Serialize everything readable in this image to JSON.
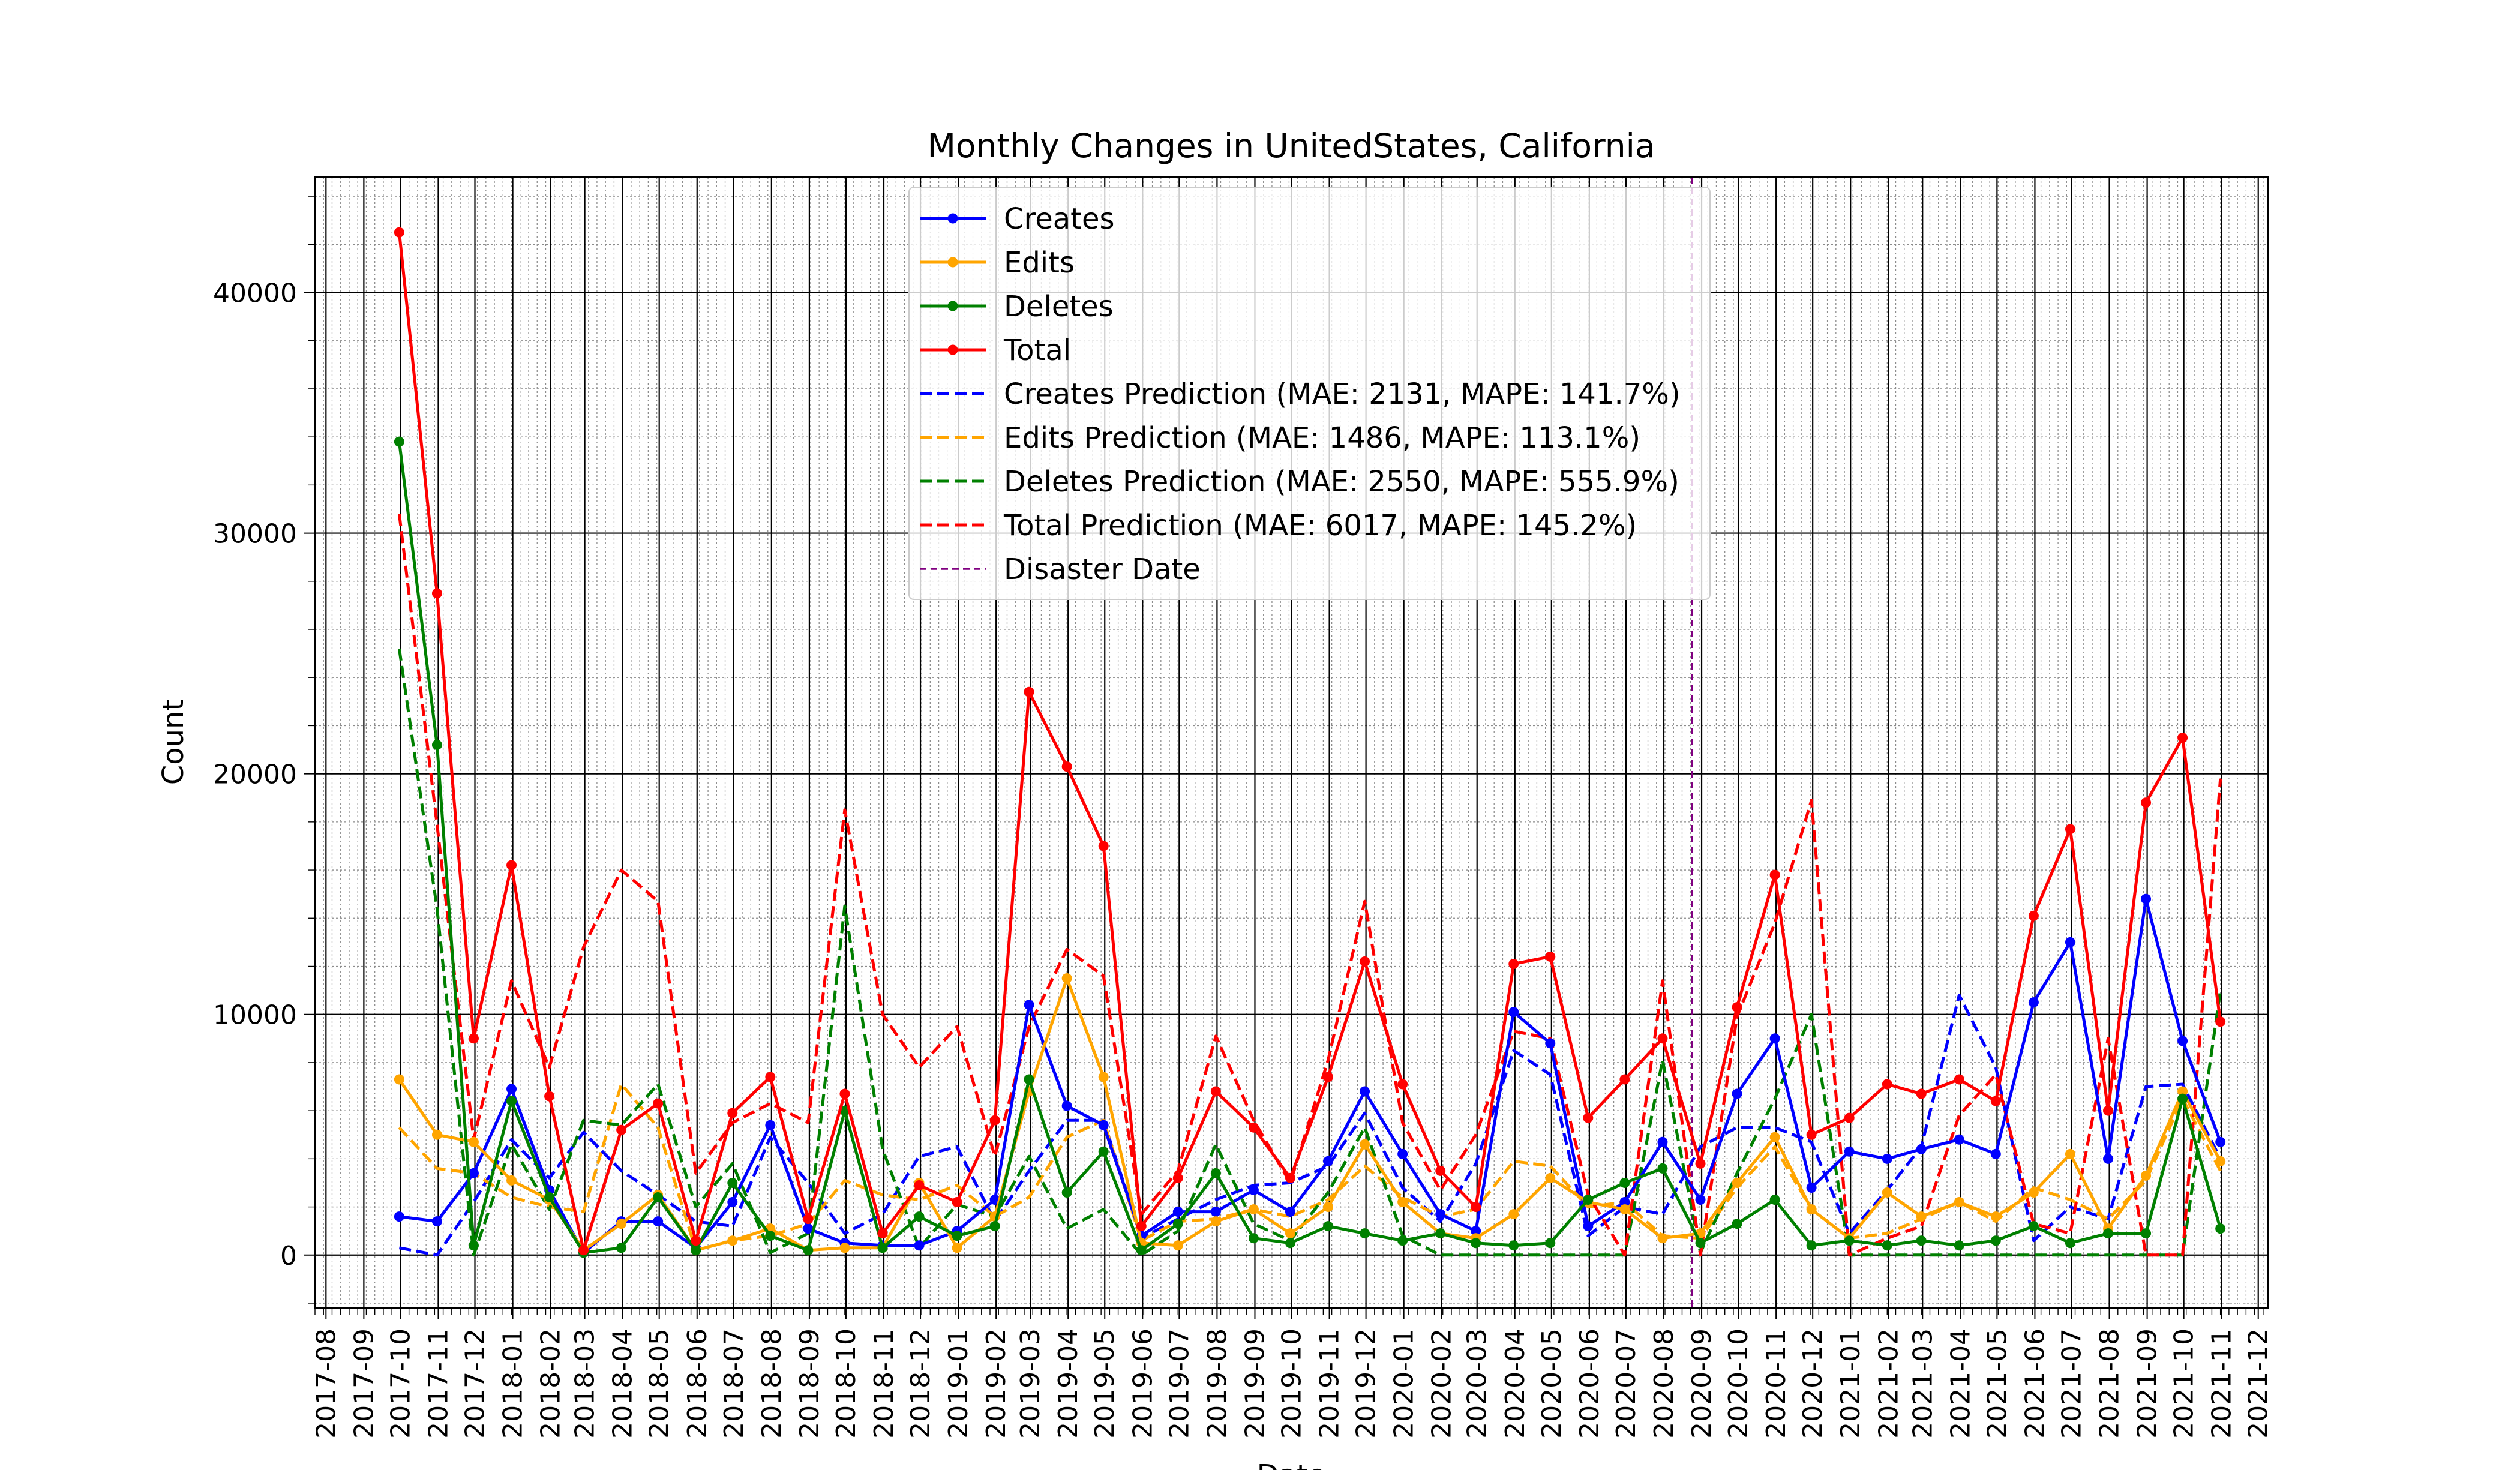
{
  "chart_data": {
    "type": "line",
    "title": "Monthly Changes in UnitedStates, California",
    "xlabel": "Date",
    "ylabel": "Count",
    "ylim": [
      -2200,
      44800
    ],
    "xlim": [
      "2017-07-23",
      "2021-12-09"
    ],
    "yticks": [
      0,
      10000,
      20000,
      30000,
      40000
    ],
    "xticks": [
      "2017-08",
      "2017-09",
      "2017-10",
      "2017-11",
      "2017-12",
      "2018-01",
      "2018-02",
      "2018-03",
      "2018-04",
      "2018-05",
      "2018-06",
      "2018-07",
      "2018-08",
      "2018-09",
      "2018-10",
      "2018-11",
      "2018-12",
      "2019-01",
      "2019-02",
      "2019-03",
      "2019-04",
      "2019-05",
      "2019-06",
      "2019-07",
      "2019-08",
      "2019-09",
      "2019-10",
      "2019-11",
      "2019-12",
      "2020-01",
      "2020-02",
      "2020-03",
      "2020-04",
      "2020-05",
      "2020-06",
      "2020-07",
      "2020-08",
      "2020-09",
      "2020-10",
      "2020-11",
      "2020-12",
      "2021-01",
      "2021-02",
      "2021-03",
      "2021-04",
      "2021-05",
      "2021-06",
      "2021-07",
      "2021-08",
      "2021-09",
      "2021-10",
      "2021-11",
      "2021-12"
    ],
    "grid": true,
    "legend_position": "top-center",
    "x": [
      "2017-09-30",
      "2017-10-31",
      "2017-11-30",
      "2017-12-31",
      "2018-01-31",
      "2018-02-28",
      "2018-03-31",
      "2018-04-30",
      "2018-05-31",
      "2018-06-30",
      "2018-07-31",
      "2018-08-31",
      "2018-09-30",
      "2018-10-31",
      "2018-11-30",
      "2018-12-31",
      "2019-01-31",
      "2019-02-28",
      "2019-03-31",
      "2019-04-30",
      "2019-05-31",
      "2019-06-30",
      "2019-07-31",
      "2019-08-31",
      "2019-09-30",
      "2019-10-31",
      "2019-11-30",
      "2019-12-31",
      "2020-01-31",
      "2020-02-29",
      "2020-03-31",
      "2020-04-30",
      "2020-05-31",
      "2020-06-30",
      "2020-07-31",
      "2020-08-31",
      "2020-09-30",
      "2020-10-31",
      "2020-11-30",
      "2020-12-31",
      "2021-01-31",
      "2021-02-28",
      "2021-03-31",
      "2021-04-30",
      "2021-05-31",
      "2021-06-30",
      "2021-07-31",
      "2021-08-31",
      "2021-09-30",
      "2021-10-31"
    ],
    "series": [
      {
        "name": "Creates",
        "color": "#0000ff",
        "style": "solid",
        "marker": true,
        "values": [
          1600,
          1400,
          3400,
          6900,
          2700,
          100,
          1400,
          1400,
          300,
          2200,
          5400,
          1100,
          500,
          400,
          400,
          1000,
          2300,
          10400,
          6200,
          5400,
          800,
          1800,
          1800,
          2700,
          1800,
          3900,
          6800,
          4200,
          1700,
          1000,
          10100,
          8800,
          1200,
          2200,
          4700,
          2300,
          6700,
          9000,
          2800,
          4300,
          4000,
          4400,
          4800,
          4200,
          10500,
          13000,
          4000,
          14800,
          8900,
          4700
        ]
      },
      {
        "name": "Edits",
        "color": "#ffa500",
        "style": "solid",
        "marker": true,
        "values": [
          7300,
          5000,
          4700,
          3100,
          2300,
          200,
          1300,
          2500,
          200,
          600,
          1100,
          200,
          300,
          300,
          3000,
          300,
          1600,
          6800,
          11500,
          7400,
          500,
          400,
          1400,
          1900,
          900,
          2000,
          4600,
          2200,
          900,
          700,
          1700,
          3200,
          2200,
          1900,
          700,
          900,
          3000,
          4900,
          1900,
          700,
          2600,
          1600,
          2200,
          1600,
          2600,
          4200,
          1100,
          3300,
          6800,
          3900
        ]
      },
      {
        "name": "Deletes",
        "color": "#008000",
        "style": "solid",
        "marker": true,
        "values": [
          33800,
          21200,
          400,
          6400,
          2400,
          100,
          300,
          2400,
          200,
          3000,
          800,
          200,
          6000,
          300,
          1600,
          800,
          1200,
          7300,
          2600,
          4300,
          200,
          1300,
          3400,
          700,
          500,
          1200,
          900,
          600,
          900,
          500,
          400,
          500,
          2300,
          3000,
          3600,
          500,
          1300,
          2300,
          400,
          600,
          400,
          600,
          400,
          600,
          1200,
          500,
          900,
          900,
          6500,
          1100
        ]
      },
      {
        "name": "Total",
        "color": "#ff0000",
        "style": "solid",
        "marker": true,
        "values": [
          42500,
          27500,
          9000,
          16200,
          6600,
          200,
          5200,
          6300,
          600,
          5900,
          7400,
          1500,
          6700,
          900,
          2900,
          2200,
          5600,
          23400,
          20300,
          17000,
          1200,
          3200,
          6800,
          5300,
          3200,
          7400,
          12200,
          7100,
          3500,
          2000,
          12100,
          12400,
          5700,
          7300,
          9000,
          3800,
          10300,
          15800,
          5000,
          5700,
          7100,
          6700,
          7300,
          6400,
          14100,
          17700,
          6000,
          18800,
          21500,
          9700
        ]
      },
      {
        "name": "Creates Prediction (MAE: 2131, MAPE: 141.7%)",
        "color": "#0000ff",
        "style": "dashed",
        "marker": false,
        "values": [
          300,
          0,
          2200,
          4800,
          3200,
          5100,
          3500,
          2500,
          1400,
          1200,
          4900,
          3000,
          900,
          1700,
          4100,
          4500,
          1400,
          3500,
          5600,
          5600,
          700,
          1500,
          2300,
          2900,
          3000,
          3700,
          5900,
          2800,
          1400,
          3800,
          8500,
          7500,
          800,
          2000,
          1700,
          4500,
          5300,
          5300,
          4700,
          900,
          2700,
          4500,
          10800,
          7800,
          600,
          2000,
          1500,
          7000,
          7100,
          4000
        ]
      },
      {
        "name": "Edits Prediction (MAE: 1486, MAPE: 113.1%)",
        "color": "#ffa500",
        "style": "dashed",
        "marker": false,
        "values": [
          5300,
          3600,
          3400,
          2400,
          2000,
          1800,
          7100,
          5300,
          200,
          600,
          800,
          1300,
          3100,
          2500,
          2300,
          2900,
          1600,
          2400,
          4900,
          5600,
          600,
          1400,
          1500,
          1900,
          1600,
          2300,
          3700,
          2400,
          1600,
          1900,
          3900,
          3700,
          2000,
          2200,
          800,
          700,
          2800,
          4500,
          1900,
          700,
          900,
          1500,
          2200,
          1400,
          2800,
          2300,
          1500,
          3100,
          6500,
          3500
        ]
      },
      {
        "name": "Deletes Prediction (MAE: 2550, MAPE: 555.9%)",
        "color": "#008000",
        "style": "dashed",
        "marker": false,
        "values": [
          25200,
          14400,
          0,
          4600,
          1900,
          5600,
          5400,
          7100,
          2000,
          3800,
          100,
          900,
          14500,
          4400,
          300,
          2100,
          1600,
          4100,
          1100,
          1900,
          0,
          1000,
          4600,
          1300,
          600,
          2600,
          5300,
          800,
          0,
          0,
          0,
          0,
          0,
          0,
          8100,
          100,
          3400,
          6500,
          10000,
          0,
          0,
          0,
          0,
          0,
          0,
          0,
          0,
          0,
          0,
          11000
        ]
      },
      {
        "name": "Total Prediction (MAE: 6017, MAPE: 145.2%)",
        "color": "#ff0000",
        "style": "dashed",
        "marker": false,
        "values": [
          30800,
          17900,
          4800,
          11400,
          7800,
          12800,
          16000,
          14700,
          3400,
          5500,
          6300,
          5500,
          18500,
          10000,
          7800,
          9500,
          4100,
          9500,
          12700,
          11600,
          1700,
          3500,
          9100,
          5600,
          3000,
          8100,
          14700,
          5500,
          2700,
          5000,
          9300,
          9000,
          2500,
          0,
          11400,
          0,
          9900,
          13800,
          18900,
          0,
          700,
          1200,
          5800,
          7500,
          1300,
          900,
          9000,
          0,
          0,
          19800
        ]
      }
    ],
    "annotations": [
      {
        "name": "Disaster Date",
        "type": "vline",
        "x": "2020-08-24",
        "color": "#800080",
        "style": "dashed"
      }
    ]
  }
}
